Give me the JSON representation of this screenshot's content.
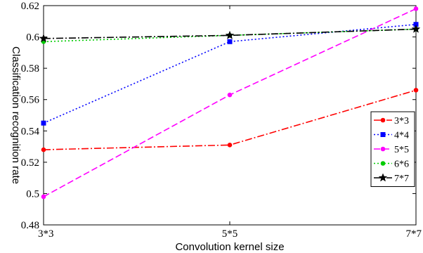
{
  "chart_data": {
    "type": "line",
    "title": "",
    "xlabel": "Convolution kernel size",
    "ylabel": "Classification recognition rate",
    "categories": [
      "3*3",
      "5*5",
      "7*7"
    ],
    "yticks": [
      "0.48",
      "0.5",
      "0.52",
      "0.54",
      "0.56",
      "0.58",
      "0.6",
      "0.62"
    ],
    "ylim": [
      0.48,
      0.62
    ],
    "grid": false,
    "legend_position": "right",
    "series": [
      {
        "name": "3*3",
        "values": [
          0.528,
          0.531,
          0.566
        ],
        "color": "#ff0000",
        "dash": "10 3 2 3",
        "marker": "dot"
      },
      {
        "name": "4*4",
        "values": [
          0.545,
          0.597,
          0.608
        ],
        "color": "#0000ff",
        "dash": "2 3",
        "marker": "square"
      },
      {
        "name": "5*5",
        "values": [
          0.498,
          0.563,
          0.618
        ],
        "color": "#ff00ff",
        "dash": "9 4",
        "marker": "dot"
      },
      {
        "name": "6*6",
        "values": [
          0.597,
          0.601,
          0.605
        ],
        "color": "#00cc00",
        "dash": "2 3",
        "marker": "dot"
      },
      {
        "name": "7*7",
        "values": [
          0.599,
          0.601,
          0.605
        ],
        "color": "#000000",
        "dash": "10 3 2 3",
        "marker": "star"
      }
    ]
  }
}
